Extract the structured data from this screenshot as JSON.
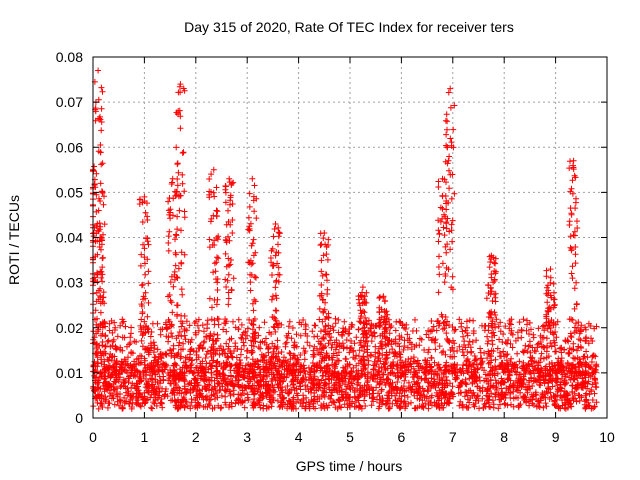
{
  "chart_data": {
    "type": "scatter",
    "title": "Day 315 of 2020, Rate Of TEC Index for receiver ters",
    "xlabel": "GPS time / hours",
    "ylabel": "ROTI / TECUs",
    "xlim": [
      0,
      10
    ],
    "ylim": [
      0,
      0.08
    ],
    "x_ticks": [
      0,
      1,
      2,
      3,
      4,
      5,
      6,
      7,
      8,
      9,
      10
    ],
    "x_tick_labels": [
      "0",
      "1",
      "2",
      "3",
      "4",
      "5",
      "6",
      "7",
      "8",
      "9",
      "10"
    ],
    "y_ticks": [
      0,
      0.01,
      0.02,
      0.03,
      0.04,
      0.05,
      0.06,
      0.07,
      0.08
    ],
    "y_tick_labels": [
      "0",
      "0.01",
      "0.02",
      "0.03",
      "0.04",
      "0.05",
      "0.06",
      "0.07",
      "0.08"
    ],
    "grid": true,
    "marker": "+",
    "series_color": "#ff0000",
    "series": [
      {
        "name": "ROTI",
        "peaks": [
          {
            "x": 0.0,
            "y": 0.055
          },
          {
            "x": 0.1,
            "y": 0.077
          },
          {
            "x": 0.15,
            "y": 0.052
          },
          {
            "x": 1.0,
            "y": 0.049
          },
          {
            "x": 1.55,
            "y": 0.053
          },
          {
            "x": 1.7,
            "y": 0.074
          },
          {
            "x": 2.35,
            "y": 0.055
          },
          {
            "x": 2.65,
            "y": 0.053
          },
          {
            "x": 3.1,
            "y": 0.053
          },
          {
            "x": 3.55,
            "y": 0.043
          },
          {
            "x": 4.5,
            "y": 0.041
          },
          {
            "x": 5.25,
            "y": 0.029
          },
          {
            "x": 5.65,
            "y": 0.027
          },
          {
            "x": 6.8,
            "y": 0.053
          },
          {
            "x": 6.95,
            "y": 0.073
          },
          {
            "x": 7.75,
            "y": 0.036
          },
          {
            "x": 8.9,
            "y": 0.033
          },
          {
            "x": 9.35,
            "y": 0.057
          }
        ],
        "baseline_range": [
          0.002,
          0.012
        ],
        "x_range": [
          0,
          9.8
        ]
      }
    ]
  }
}
